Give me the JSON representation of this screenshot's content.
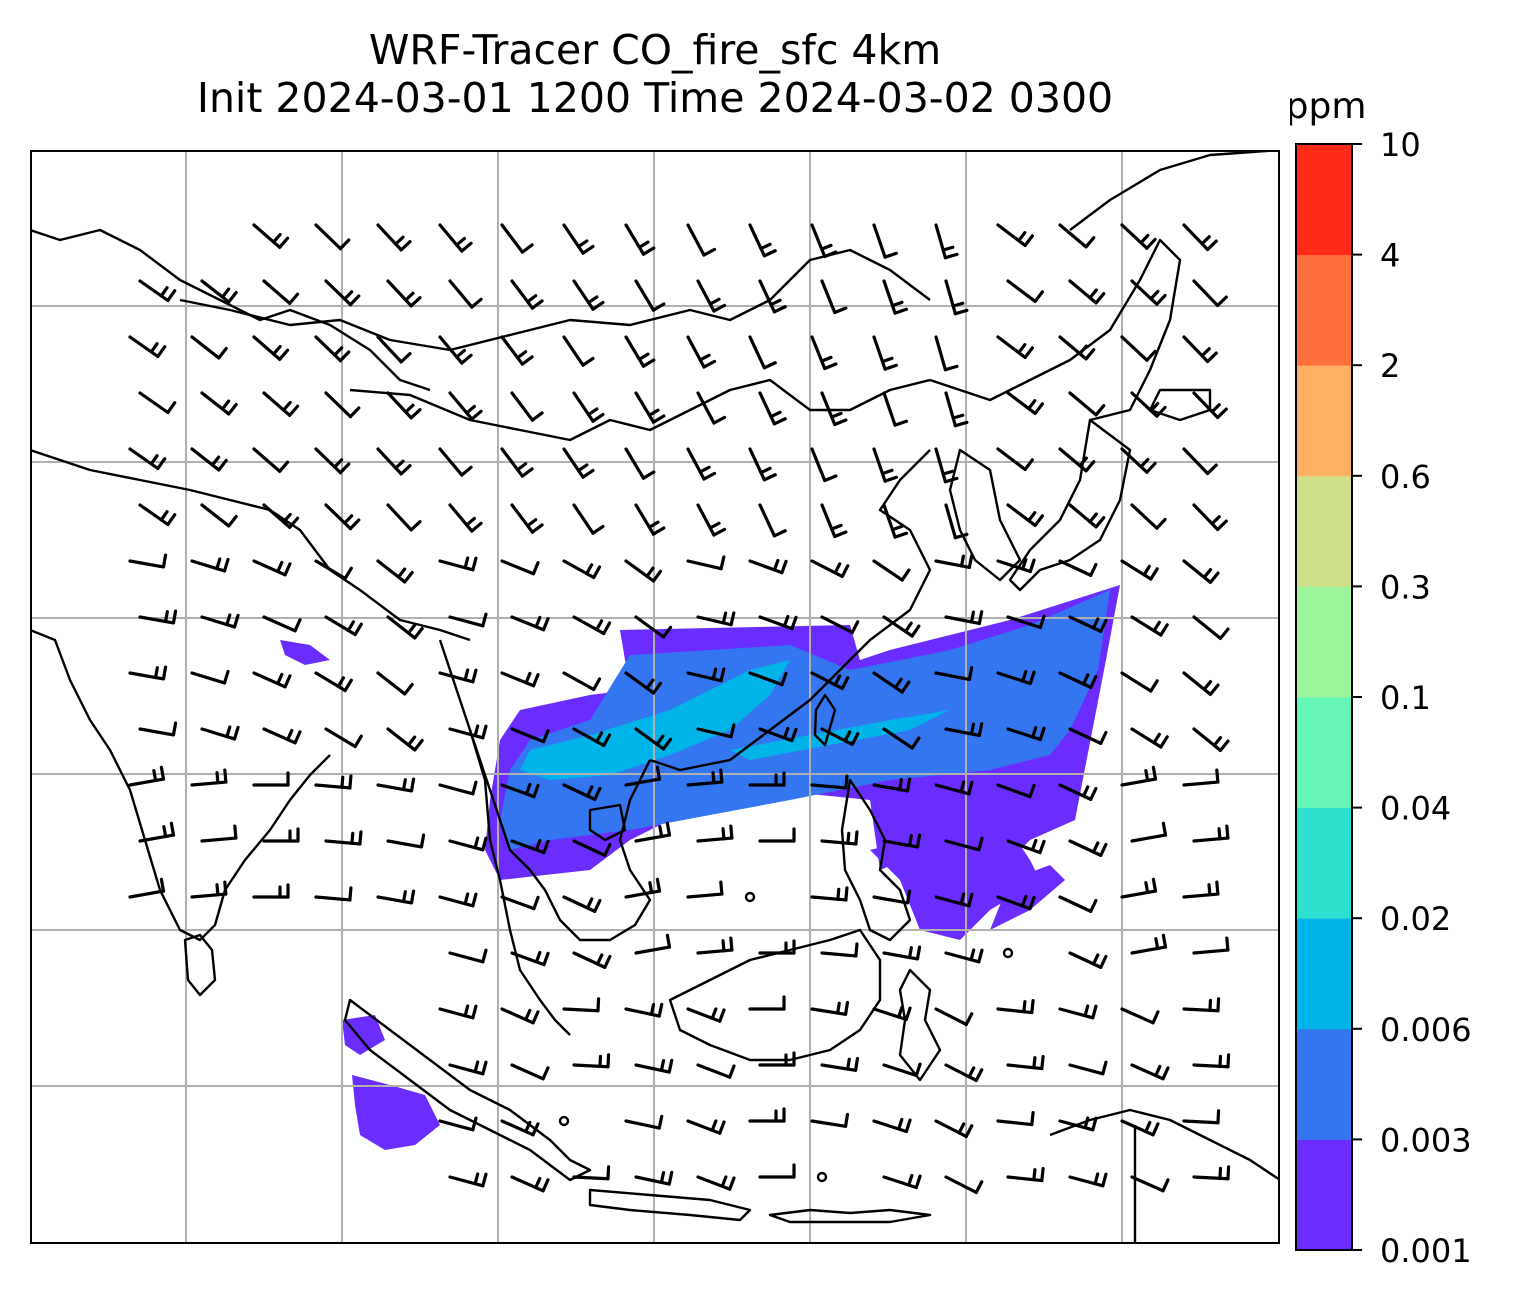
{
  "title": {
    "line1": "WRF-Tracer CO_fire_sfc 4km",
    "line2": "Init 2024-03-01 1200 Time 2024-03-02 0300"
  },
  "colorbar": {
    "unit": "ppm",
    "levels": [
      "0.001",
      "0.003",
      "0.006",
      "0.02",
      "0.04",
      "0.1",
      "0.3",
      "0.6",
      "2",
      "4",
      "10"
    ],
    "colors": [
      "#6a2cff",
      "#3475f0",
      "#00b3e8",
      "#2ee0d0",
      "#66f7b8",
      "#9cf59a",
      "#cfe08a",
      "#feb062",
      "#ff703d",
      "#ff2a18"
    ]
  },
  "map": {
    "gridlines": true,
    "coastline_color": "#000000",
    "grid_color": "#b0b0b0",
    "barb_color": "#000000"
  }
}
